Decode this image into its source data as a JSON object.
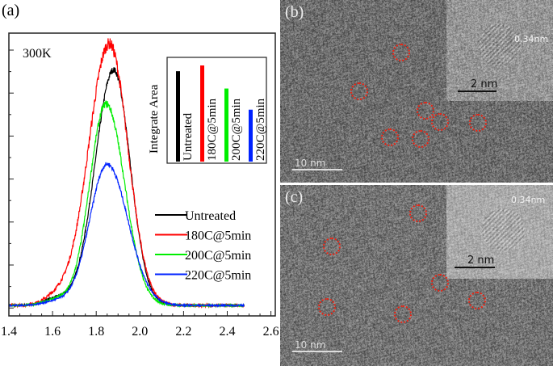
{
  "panel_labels": {
    "a": "(a)",
    "b": "(b)",
    "c": "(c)"
  },
  "chart_data": {
    "type": "line",
    "annotation": "300K",
    "xlabel": "",
    "ylabel": "",
    "xlim": [
      1.4,
      2.62
    ],
    "ylim": [
      -0.04,
      1.04
    ],
    "xticks": [
      "1.4",
      "1.6",
      "1.8",
      "2.0",
      "2.2",
      "2.4",
      "2.6"
    ],
    "x_range": [
      1.4,
      2.48
    ],
    "series": [
      {
        "name": "Untreated",
        "color": "#000000",
        "center": 1.88,
        "peak": 0.9,
        "sigma_left": 0.085,
        "sigma_right": 0.075,
        "noise": 0.02
      },
      {
        "name": "180C@5min",
        "color": "#ff0000",
        "center": 1.86,
        "peak": 1.0,
        "sigma_left": 0.095,
        "sigma_right": 0.085,
        "noise": 0.035
      },
      {
        "name": "200C@5min",
        "color": "#00ee00",
        "center": 1.845,
        "peak": 0.77,
        "sigma_left": 0.075,
        "sigma_right": 0.085,
        "noise": 0.025
      },
      {
        "name": "220C@5min",
        "color": "#0022ff",
        "center": 1.85,
        "peak": 0.54,
        "sigma_left": 0.08,
        "sigma_right": 0.095,
        "noise": 0.02
      }
    ],
    "inset": {
      "type": "bar",
      "ylabel": "Integrate Area",
      "categories": [
        "Untreated",
        "180C@5min",
        "200C@5min",
        "220C@5min"
      ],
      "values": [
        0.94,
        1.0,
        0.76,
        0.54
      ],
      "colors": [
        "#000000",
        "#ff0000",
        "#00ee00",
        "#0022ff"
      ]
    }
  },
  "tem": {
    "b": {
      "scale_bar": "10 nm",
      "inset_scale_bar": "2 nm",
      "spacing": "0.34nm"
    },
    "c": {
      "scale_bar": "10 nm",
      "inset_scale_bar": "2 nm",
      "spacing": "0.34nm"
    }
  }
}
